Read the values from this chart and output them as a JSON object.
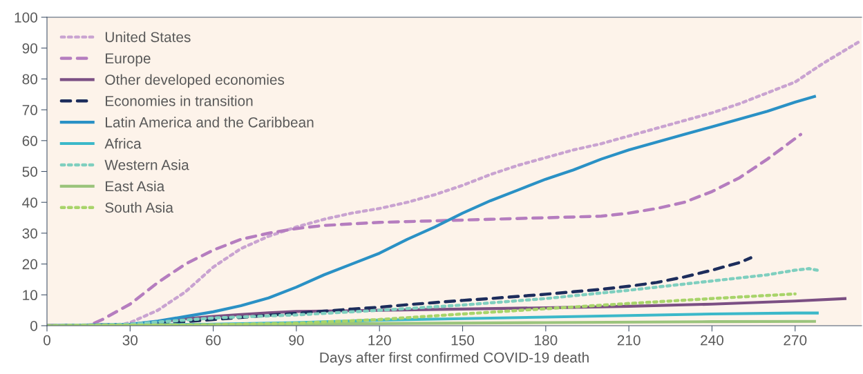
{
  "chart_data": {
    "type": "line",
    "xlabel": "Days after first confirmed COVID-19 death",
    "xlim": [
      0,
      294
    ],
    "xticks": [
      0,
      30,
      60,
      90,
      120,
      150,
      180,
      210,
      240,
      270
    ],
    "ylim": [
      0,
      100
    ],
    "yticks": [
      0,
      10,
      20,
      30,
      40,
      50,
      60,
      70,
      80,
      90,
      100
    ],
    "grid": false,
    "legend": "top left",
    "series": [
      {
        "name": "United States",
        "color": "#c9a3d1",
        "line_style": "dotted",
        "x": [
          0,
          25,
          30,
          40,
          50,
          60,
          70,
          80,
          90,
          100,
          110,
          120,
          130,
          140,
          150,
          160,
          170,
          180,
          190,
          200,
          210,
          220,
          230,
          240,
          250,
          260,
          270,
          280,
          293
        ],
        "values": [
          0,
          0,
          1,
          5,
          11,
          19,
          25,
          29,
          32,
          34.5,
          36.5,
          38,
          40,
          42.5,
          45.5,
          49,
          52,
          54.5,
          57,
          59,
          61.5,
          64,
          66.5,
          69,
          72,
          75.5,
          79,
          85,
          92
        ]
      },
      {
        "name": "Europe",
        "color": "#b57dbf",
        "line_style": "dashed",
        "x": [
          0,
          15,
          20,
          30,
          40,
          50,
          60,
          70,
          80,
          90,
          100,
          110,
          120,
          140,
          160,
          180,
          200,
          210,
          220,
          230,
          240,
          250,
          260,
          272
        ],
        "values": [
          0,
          0,
          2,
          7,
          14,
          20,
          24.5,
          28,
          30,
          31.5,
          32.5,
          33,
          33.5,
          34,
          34.5,
          35,
          35.5,
          36.5,
          38,
          40,
          43.5,
          48,
          54,
          62
        ]
      },
      {
        "name": "Other developed economies",
        "color": "#7b4f83",
        "line_style": "solid",
        "x": [
          0,
          30,
          40,
          50,
          60,
          70,
          80,
          90,
          120,
          150,
          180,
          210,
          240,
          270,
          288
        ],
        "values": [
          0,
          0.5,
          1.2,
          2.2,
          3,
          3.6,
          4.2,
          4.6,
          5,
          5.4,
          5.8,
          6.3,
          7,
          8,
          8.8
        ]
      },
      {
        "name": "Economies in transition",
        "color": "#1d2d5c",
        "line_style": "dashed",
        "x": [
          0,
          30,
          40,
          50,
          60,
          70,
          80,
          90,
          100,
          110,
          120,
          130,
          140,
          150,
          160,
          170,
          180,
          190,
          200,
          210,
          220,
          230,
          240,
          250,
          254
        ],
        "values": [
          0,
          0.3,
          0.8,
          1.3,
          2,
          2.7,
          3.4,
          4,
          4.7,
          5.4,
          6,
          6.8,
          7.5,
          8.2,
          8.8,
          9.5,
          10.2,
          11,
          11.8,
          12.8,
          14,
          15.8,
          18,
          20.5,
          22
        ]
      },
      {
        "name": "Latin America and the Caribbean",
        "color": "#2a91c5",
        "line_style": "solid",
        "x": [
          0,
          30,
          40,
          50,
          60,
          70,
          80,
          90,
          100,
          110,
          120,
          130,
          140,
          150,
          160,
          170,
          180,
          190,
          200,
          210,
          220,
          230,
          240,
          250,
          260,
          270,
          277
        ],
        "values": [
          0,
          0.5,
          1.5,
          3,
          4.5,
          6.5,
          9,
          12.5,
          16.5,
          20,
          23.5,
          28,
          32,
          36.5,
          40.5,
          44,
          47.5,
          50.5,
          54,
          57,
          59.5,
          62,
          64.5,
          67,
          69.5,
          72.5,
          74.3
        ]
      },
      {
        "name": "Africa",
        "color": "#3bb8c9",
        "line_style": "solid",
        "x": [
          0,
          60,
          90,
          120,
          150,
          180,
          210,
          240,
          270,
          278
        ],
        "values": [
          0,
          0.5,
          1,
          1.8,
          2.3,
          2.8,
          3.3,
          3.8,
          4.1,
          4.1
        ]
      },
      {
        "name": "Western Asia",
        "color": "#7fcfbf",
        "line_style": "dotted",
        "x": [
          0,
          30,
          60,
          90,
          120,
          150,
          180,
          210,
          240,
          260,
          270,
          275,
          278
        ],
        "values": [
          0,
          0.5,
          2.5,
          3.5,
          5,
          6.7,
          8.8,
          11.5,
          14.5,
          16.5,
          18,
          18.5,
          18
        ]
      },
      {
        "name": "East Asia",
        "color": "#9bc47c",
        "line_style": "solid",
        "x": [
          0,
          60,
          120,
          180,
          240,
          277
        ],
        "values": [
          0,
          0.3,
          0.7,
          1,
          1.3,
          1.4
        ]
      },
      {
        "name": "South Asia",
        "color": "#a8d46a",
        "line_style": "dotted",
        "x": [
          0,
          60,
          90,
          120,
          150,
          180,
          210,
          240,
          270
        ],
        "values": [
          0,
          0.3,
          0.8,
          2,
          3.8,
          5.5,
          7.2,
          8.8,
          10.3
        ]
      }
    ]
  }
}
